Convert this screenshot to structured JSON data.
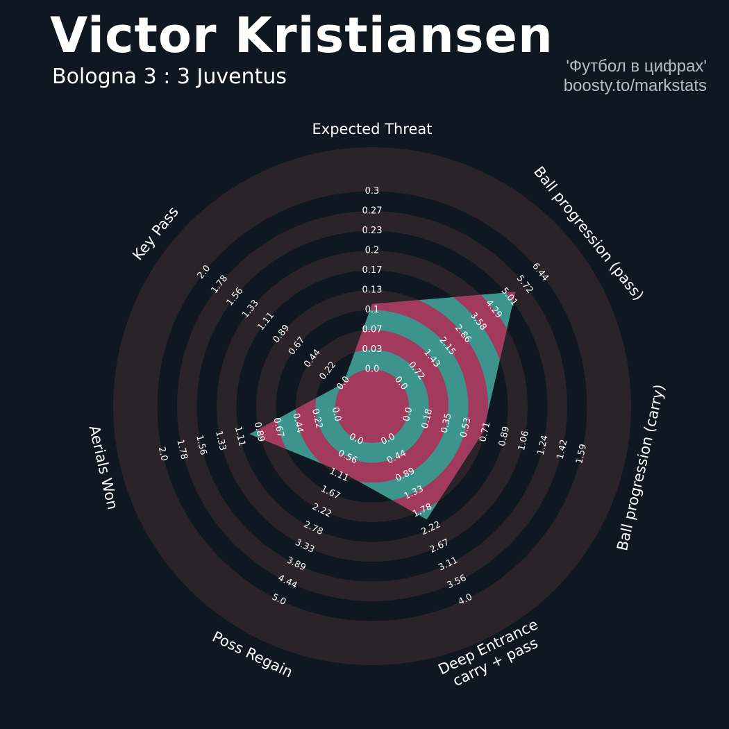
{
  "header": {
    "title": "Victor Kristiansen",
    "subtitle": "Bologna 3 : 3 Juventus",
    "credit_line1": "'Футбол в цифрах'",
    "credit_line2": "boosty.to/markstats"
  },
  "colors": {
    "background": "#0f1820",
    "ring_band": "#2a2329",
    "player_fill_light": "#3d948d",
    "player_fill_dark": "#a23a5e",
    "text": "#ffffff"
  },
  "chart_data": {
    "type": "radar",
    "params": [
      {
        "label": "Expected Threat",
        "min": 0.0,
        "max": 0.3,
        "value": 0.11,
        "ticks": [
          "0.0",
          "0.03",
          "0.07",
          "0.1",
          "0.13",
          "0.17",
          "0.2",
          "0.23",
          "0.27",
          "0.3"
        ]
      },
      {
        "label": "Ball progression (pass)",
        "min": 0.0,
        "max": 6.44,
        "value": 5.3,
        "ticks": [
          "0.0",
          "0.72",
          "1.43",
          "2.15",
          "2.86",
          "3.58",
          "4.29",
          "5.01",
          "5.72",
          "6.44"
        ]
      },
      {
        "label": "Ball progression (carry)",
        "min": 0.0,
        "max": 1.59,
        "value": 0.69,
        "ticks": [
          "0.0",
          "0.18",
          "0.35",
          "0.53",
          "0.71",
          "0.89",
          "1.06",
          "1.24",
          "1.42",
          "1.59"
        ]
      },
      {
        "label": "Deep Entrance\ncarry + pass",
        "min": 0.0,
        "max": 4.0,
        "value": 2.0,
        "ticks": [
          "0.0",
          "0.44",
          "0.89",
          "1.33",
          "1.78",
          "2.22",
          "2.67",
          "3.11",
          "3.56",
          "4.0"
        ]
      },
      {
        "label": "Poss Regain",
        "min": 0.0,
        "max": 5.0,
        "value": 1.0,
        "ticks": [
          "0.0",
          "0.56",
          "1.11",
          "1.67",
          "2.22",
          "2.78",
          "3.33",
          "3.89",
          "4.44",
          "5.0"
        ]
      },
      {
        "label": "Aerials Won",
        "min": 0.0,
        "max": 2.0,
        "value": 1.0,
        "ticks": [
          "0.0",
          "0.22",
          "0.44",
          "0.67",
          "0.89",
          "1.11",
          "1.33",
          "1.56",
          "1.78",
          "2.0"
        ]
      },
      {
        "label": "Key Pass",
        "min": 0.0,
        "max": 2.0,
        "value": 0.0,
        "ticks": [
          "0.0",
          "0.22",
          "0.44",
          "0.67",
          "0.89",
          "1.11",
          "1.33",
          "1.56",
          "1.78",
          "2.0"
        ]
      }
    ],
    "series": [
      {
        "values": [
          0.11,
          5.3,
          0.69,
          2.0,
          1.0,
          1.0,
          0.0
        ]
      }
    ],
    "legend": "none",
    "grid": "concentric alternating bands"
  }
}
